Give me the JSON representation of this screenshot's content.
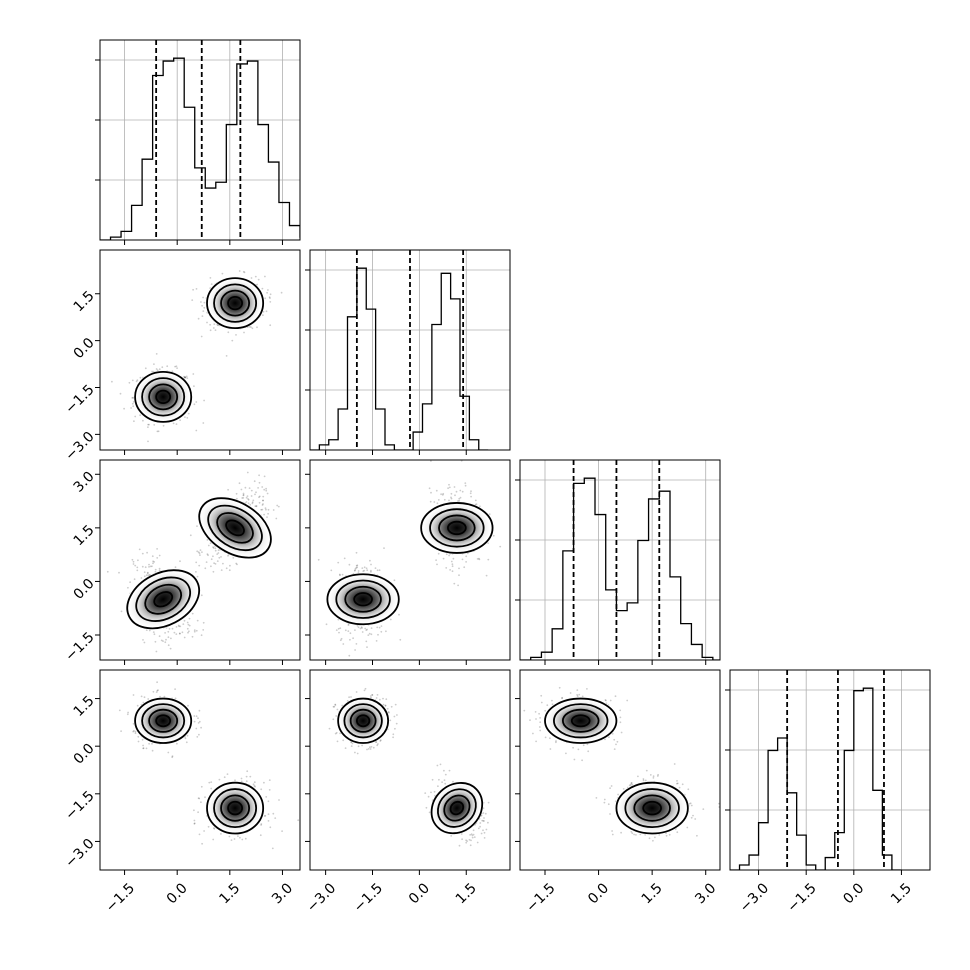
{
  "chart_data": {
    "type": "corner",
    "n_params": 4,
    "grid": true,
    "params": [
      {
        "range": [
          -2.2,
          3.5
        ],
        "ticks": [
          -1.5,
          0.0,
          1.5,
          3.0
        ],
        "tick_labels": [
          "−1.5",
          "0.0",
          "1.5",
          "3.0"
        ],
        "quantiles": [
          -0.6,
          0.7,
          1.8
        ],
        "hist_edges_start": -2.2,
        "hist_counts": [
          0,
          1,
          3,
          12,
          28,
          57,
          62,
          63,
          46,
          25,
          18,
          20,
          40,
          61,
          62,
          40,
          27,
          13,
          5,
          1,
          0
        ]
      },
      {
        "range": [
          -3.5,
          2.9
        ],
        "ticks": [
          -3.0,
          -1.5,
          0.0,
          1.5
        ],
        "tick_labels": [
          "−3.0",
          "−1.5",
          "0.0",
          "1.5"
        ],
        "quantiles": [
          -2.0,
          -0.3,
          1.4
        ],
        "hist_edges_start": -3.5,
        "hist_counts": [
          0,
          2,
          4,
          16,
          52,
          71,
          55,
          16,
          2,
          0,
          0,
          7,
          18,
          49,
          69,
          59,
          21,
          4,
          0
        ]
      },
      {
        "range": [
          -2.2,
          3.4
        ],
        "ticks": [
          -1.5,
          0.0,
          1.5,
          3.0
        ],
        "tick_labels": [
          "−1.5",
          "0.0",
          "1.5",
          "3.0"
        ],
        "quantiles": [
          -0.7,
          0.5,
          1.7
        ],
        "hist_edges_start": -2.2,
        "hist_counts": [
          0,
          1,
          3,
          12,
          42,
          68,
          70,
          56,
          27,
          19,
          22,
          46,
          62,
          65,
          32,
          14,
          6,
          1,
          0
        ]
      },
      {
        "range": [
          -3.9,
          2.4
        ],
        "ticks": [
          -3.0,
          -1.5,
          0.0,
          1.5
        ],
        "tick_labels": [
          "−3.0",
          "−1.5",
          "0.0",
          "1.5"
        ],
        "quantiles": [
          -2.1,
          -0.5,
          0.95
        ],
        "hist_edges_start": -3.9,
        "hist_counts": [
          0,
          2,
          6,
          19,
          48,
          53,
          31,
          14,
          2,
          0,
          5,
          15,
          48,
          72,
          73,
          32,
          6,
          0
        ]
      }
    ],
    "clusters": [
      {
        "center": [
          -0.4,
          -1.8,
          -0.5,
          0.8
        ],
        "sd": [
          0.4,
          0.4,
          0.5,
          0.35
        ],
        "weight": 0.5
      },
      {
        "center": [
          1.65,
          1.2,
          1.5,
          -1.95
        ],
        "sd": [
          0.4,
          0.4,
          0.5,
          0.4
        ],
        "weight": 0.5
      }
    ],
    "pair_correlations": {
      "1-0": [
        0.0,
        0.0
      ],
      "2-0": [
        -0.35,
        0.5
      ],
      "2-1": [
        0.0,
        0.0
      ],
      "3-0": [
        0.0,
        0.0
      ],
      "3-1": [
        0.0,
        -0.35
      ],
      "3-2": [
        0.0,
        0.0
      ]
    }
  }
}
